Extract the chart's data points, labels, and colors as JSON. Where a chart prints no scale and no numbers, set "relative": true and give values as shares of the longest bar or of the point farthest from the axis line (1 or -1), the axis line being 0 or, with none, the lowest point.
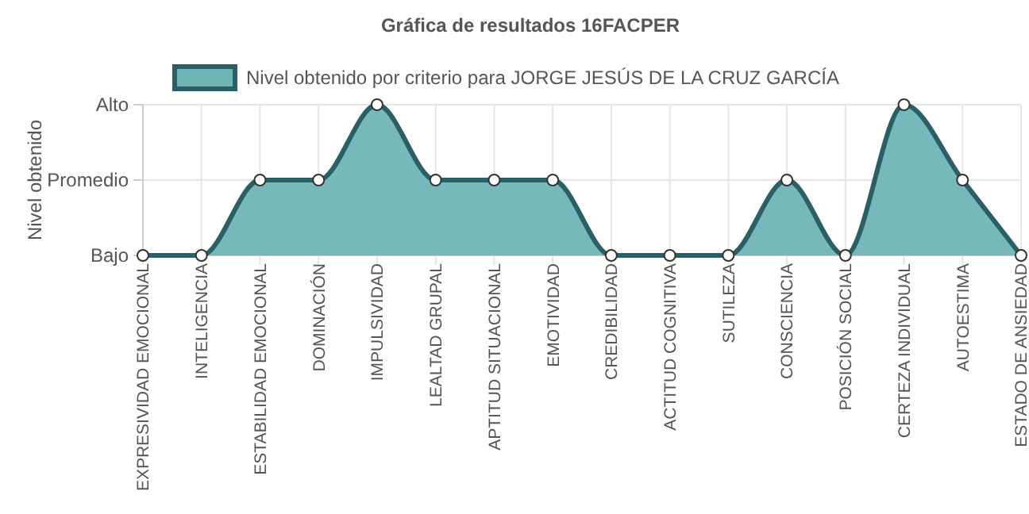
{
  "chart_data": {
    "type": "area",
    "title": "Gráfica de resultados 16FACPER",
    "ylabel": "Nivel obtenido",
    "categories": [
      "EXPRESIVIDAD EMOCIONAL",
      "INTELIGENCIA",
      "ESTABILIDAD EMOCIONAL",
      "DOMINACIÓN",
      "IMPULSIVIDAD",
      "LEALTAD GRUPAL",
      "APTITUD SITUACIONAL",
      "EMOTIVIDAD",
      "CREDIBILIDAD",
      "ACTITUD COGNITIVA",
      "SUTILEZA",
      "CONSCIENCIA",
      "POSICIÓN SOCIAL",
      "CERTEZA INDIVIDUAL",
      "AUTOESTIMA",
      "ESTADO DE ANSIEDAD"
    ],
    "series": [
      {
        "name": "Nivel obtenido por criterio para JORGE JESÚS DE LA CRUZ GARCÍA",
        "color": "#2b5f66",
        "values": [
          0,
          0,
          0.5,
          0.5,
          1,
          0.5,
          0.5,
          0.5,
          0,
          0,
          0,
          0.5,
          0,
          1,
          0.5,
          0
        ]
      }
    ],
    "relative": true,
    "annotations": [
      "Bajo",
      "Promedio",
      "Alto"
    ],
    "grid": true,
    "legend": "top",
    "marker": "circle",
    "line_style": "solid"
  }
}
